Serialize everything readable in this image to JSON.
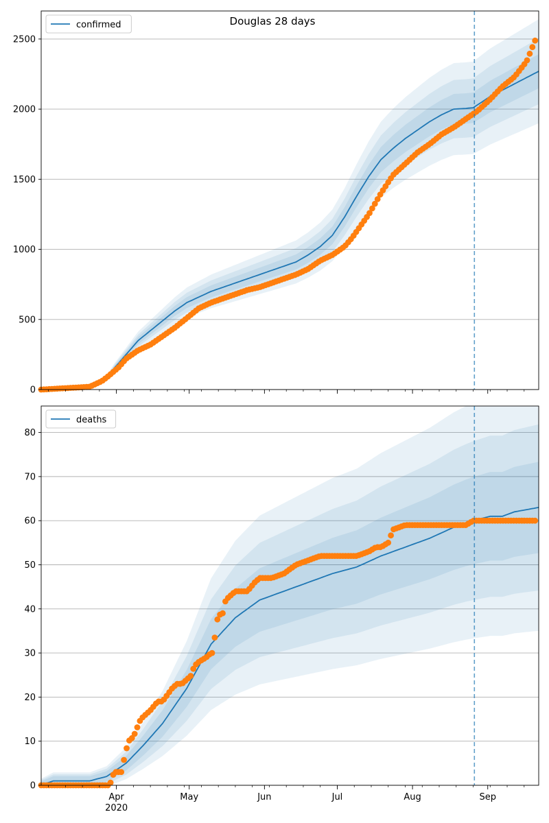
{
  "figure": {
    "title": "Douglas 28 days",
    "x_ticks": [
      {
        "label": "Apr",
        "sublabel": "2020",
        "day": 31
      },
      {
        "label": "May",
        "sublabel": "",
        "day": 61
      },
      {
        "label": "Jun",
        "sublabel": "",
        "day": 92
      },
      {
        "label": "Jul",
        "sublabel": "",
        "day": 122
      },
      {
        "label": "Aug",
        "sublabel": "",
        "day": 153
      },
      {
        "label": "Sep",
        "sublabel": "",
        "day": 184
      }
    ],
    "x_range_days": [
      0,
      205
    ],
    "split_day": 178.5,
    "colors": {
      "model": "#1f77b4",
      "observed": "#ff7f0e",
      "grid": "#b0b0b0",
      "split_line": "#1f77b4"
    }
  },
  "chart_data": [
    {
      "type": "line",
      "legend": "confirmed",
      "legend_position": "top-left",
      "grid": "horizontal",
      "ylim": [
        0,
        2700
      ],
      "y_ticks": [
        0,
        500,
        1000,
        1500,
        2000,
        2500
      ],
      "model_x": [
        0,
        20,
        27,
        30,
        35,
        40,
        45,
        50,
        55,
        60,
        65,
        70,
        75,
        80,
        85,
        90,
        95,
        100,
        105,
        110,
        115,
        120,
        125,
        130,
        135,
        140,
        145,
        150,
        155,
        160,
        165,
        170,
        175,
        178,
        185,
        195,
        205
      ],
      "model_y": [
        0,
        15,
        80,
        150,
        250,
        350,
        420,
        490,
        560,
        620,
        660,
        700,
        730,
        760,
        790,
        820,
        850,
        880,
        910,
        960,
        1020,
        1100,
        1230,
        1380,
        1520,
        1640,
        1720,
        1790,
        1850,
        1910,
        1960,
        2000,
        2005,
        2010,
        2090,
        2180,
        2270
      ],
      "band_scale": [
        0.16,
        0.1,
        0.05
      ],
      "observed_x": [
        0,
        20,
        25,
        28,
        32,
        35,
        40,
        45,
        50,
        55,
        60,
        65,
        70,
        75,
        80,
        85,
        90,
        95,
        100,
        105,
        110,
        115,
        120,
        125,
        128,
        135,
        140,
        145,
        150,
        155,
        160,
        165,
        170,
        175,
        180,
        185,
        190,
        195,
        200,
        204
      ],
      "observed_y": [
        0,
        20,
        60,
        100,
        160,
        220,
        280,
        320,
        380,
        440,
        510,
        580,
        620,
        650,
        680,
        710,
        730,
        760,
        790,
        820,
        860,
        920,
        960,
        1020,
        1080,
        1250,
        1400,
        1530,
        1610,
        1690,
        1750,
        1820,
        1870,
        1930,
        1990,
        2070,
        2160,
        2230,
        2340,
        2510
      ]
    },
    {
      "type": "line",
      "legend": "deaths",
      "legend_position": "top-left",
      "grid": "horizontal",
      "ylim": [
        0,
        86
      ],
      "y_ticks": [
        0,
        10,
        20,
        30,
        40,
        50,
        60,
        70,
        80
      ],
      "model_x": [
        0,
        5,
        20,
        27,
        35,
        42,
        50,
        60,
        65,
        70,
        75,
        80,
        85,
        90,
        100,
        110,
        120,
        130,
        140,
        150,
        160,
        170,
        175,
        178,
        185,
        190,
        195,
        200,
        205
      ],
      "model_y": [
        0,
        1,
        1,
        2,
        5,
        9,
        14,
        22,
        27,
        32,
        35,
        38,
        40,
        42,
        44,
        46,
        48,
        49.5,
        52,
        54,
        56,
        58.5,
        59.5,
        60,
        61,
        61,
        62,
        62.5,
        63
      ],
      "band_scale": [
        0.42,
        0.28,
        0.15
      ],
      "observed_x": [
        0,
        28,
        29,
        30,
        33,
        35,
        36,
        38,
        41,
        45,
        48,
        50,
        54,
        56,
        58,
        60,
        62,
        63,
        65,
        68,
        70,
        71,
        72,
        73,
        74,
        75,
        76,
        78,
        80,
        85,
        88,
        90,
        95,
        100,
        105,
        110,
        115,
        120,
        125,
        130,
        135,
        138,
        140,
        143,
        145,
        150,
        160,
        170,
        175,
        178,
        185,
        195,
        204
      ],
      "observed_y": [
        0,
        0,
        1,
        3,
        3,
        8,
        10,
        11,
        15,
        17,
        19,
        19,
        22,
        23,
        23,
        24,
        25,
        27,
        28,
        29,
        30,
        30,
        37,
        38,
        39,
        39,
        42,
        43,
        44,
        44,
        46,
        47,
        47,
        48,
        50,
        51,
        52,
        52,
        52,
        52,
        53,
        54,
        54,
        55,
        58,
        59,
        59,
        59,
        59,
        60,
        60,
        60,
        60
      ]
    }
  ]
}
